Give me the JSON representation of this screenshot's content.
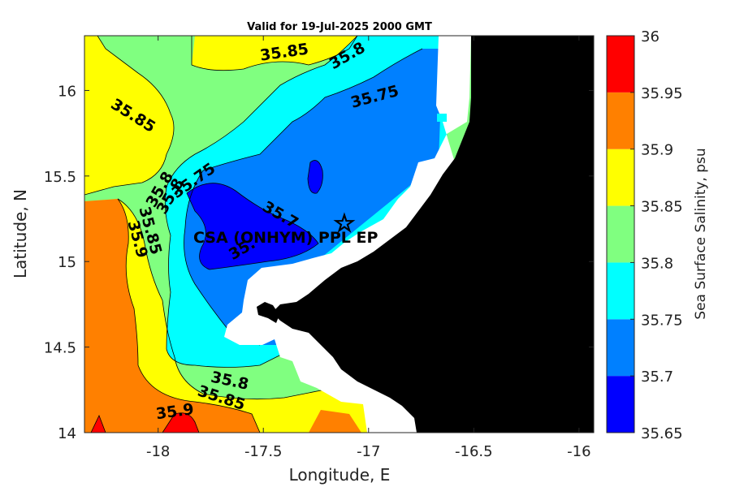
{
  "chart_data": {
    "type": "contour-map",
    "title": "Valid for 19-Jul-2025 2000 GMT",
    "xlabel": "Longitude, E",
    "ylabel": "Latitude, N",
    "xlim": [
      -18.35,
      -15.93
    ],
    "ylim": [
      14.0,
      16.32
    ],
    "xticks": [
      -18,
      -17.5,
      -17,
      -16.5,
      -16
    ],
    "xtick_labels": [
      "-18",
      "-17.5",
      "-17",
      "-16.5",
      "-16"
    ],
    "yticks": [
      14,
      14.5,
      15,
      15.5,
      16
    ],
    "yticks_labels": [
      "14",
      "14.5",
      "15",
      "15.5",
      "16"
    ],
    "colorbar": {
      "label": "Sea Surface Salinity, psu",
      "levels": [
        35.65,
        35.7,
        35.75,
        35.8,
        35.85,
        35.9,
        35.95,
        36
      ],
      "level_labels": [
        "35.65",
        "35.7",
        "35.75",
        "35.8",
        "35.85",
        "35.9",
        "35.95",
        "36"
      ],
      "colors": [
        "#0000ff",
        "#0080ff",
        "#00ffff",
        "#80ff80",
        "#ffff00",
        "#ff8000",
        "#ff0000"
      ]
    },
    "contour_labels": [
      {
        "text": "35.85",
        "lon": -17.4,
        "lat": 16.22,
        "angle": -8
      },
      {
        "text": "35.8",
        "lon": -17.1,
        "lat": 16.2,
        "angle": -30
      },
      {
        "text": "35.75",
        "lon": -16.97,
        "lat": 15.96,
        "angle": -15
      },
      {
        "text": "35.85",
        "lon": -18.12,
        "lat": 15.85,
        "angle": 32
      },
      {
        "text": "35.75",
        "lon": -17.83,
        "lat": 15.47,
        "angle": -35
      },
      {
        "text": "35.8",
        "lon": -17.99,
        "lat": 15.42,
        "angle": -60
      },
      {
        "text": "35.8",
        "lon": -17.94,
        "lat": 15.38,
        "angle": -60
      },
      {
        "text": "35.7",
        "lon": -17.42,
        "lat": 15.27,
        "angle": 30
      },
      {
        "text": "35.",
        "lon": -17.6,
        "lat": 15.07,
        "angle": -30
      },
      {
        "text": "35.85",
        "lon": -18.04,
        "lat": 15.18,
        "angle": 75
      },
      {
        "text": "35.9",
        "lon": -18.1,
        "lat": 15.13,
        "angle": 75
      },
      {
        "text": "35.8",
        "lon": -17.66,
        "lat": 14.3,
        "angle": 12
      },
      {
        "text": "35.85",
        "lon": -17.7,
        "lat": 14.2,
        "angle": 18
      },
      {
        "text": "35.9",
        "lon": -17.92,
        "lat": 14.12,
        "angle": -8
      }
    ],
    "site": {
      "label": "CSA (ONHYM) PPL EP",
      "lon": -17.1,
      "lat": 15.22
    },
    "land_color": "#000000",
    "mask_color": "#ffffff"
  }
}
